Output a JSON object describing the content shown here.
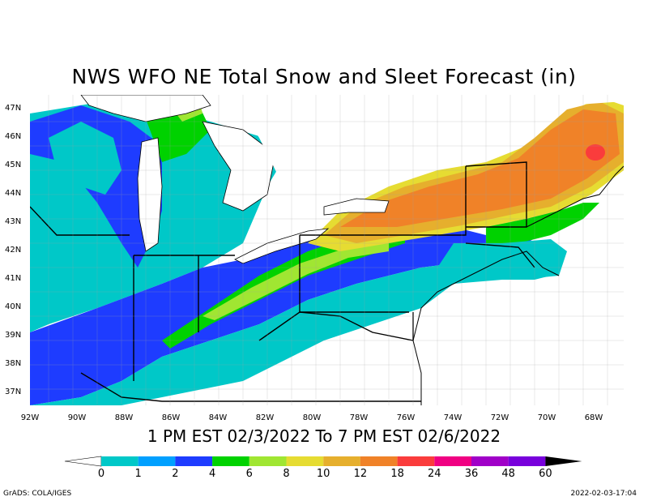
{
  "title": "NWS WFO NE Total Snow and Sleet Forecast (in)",
  "subtitle": "1 PM EST 02/3/2022 To 7 PM EST 02/6/2022",
  "lat_labels": [
    "47N",
    "46N",
    "45N",
    "44N",
    "43N",
    "42N",
    "41N",
    "40N",
    "39N",
    "38N",
    "37N"
  ],
  "lon_labels": [
    "92W",
    "90W",
    "88W",
    "86W",
    "84W",
    "82W",
    "80W",
    "78W",
    "76W",
    "74W",
    "72W",
    "70W",
    "68W"
  ],
  "colorbar": {
    "labels": [
      "0",
      "1",
      "2",
      "4",
      "6",
      "8",
      "10",
      "12",
      "18",
      "24",
      "36",
      "48",
      "60"
    ],
    "colors": [
      "#00c8c8",
      "#00a0ff",
      "#1e3cff",
      "#00d200",
      "#a0e632",
      "#e6dc32",
      "#e6af2d",
      "#f08228",
      "#fa3c3c",
      "#f00082",
      "#a000c8",
      "#7800dc",
      "#000000"
    ]
  },
  "footer": {
    "left": "GrADS: COLA/IGES",
    "right": "2022-02-03-17:04"
  }
}
